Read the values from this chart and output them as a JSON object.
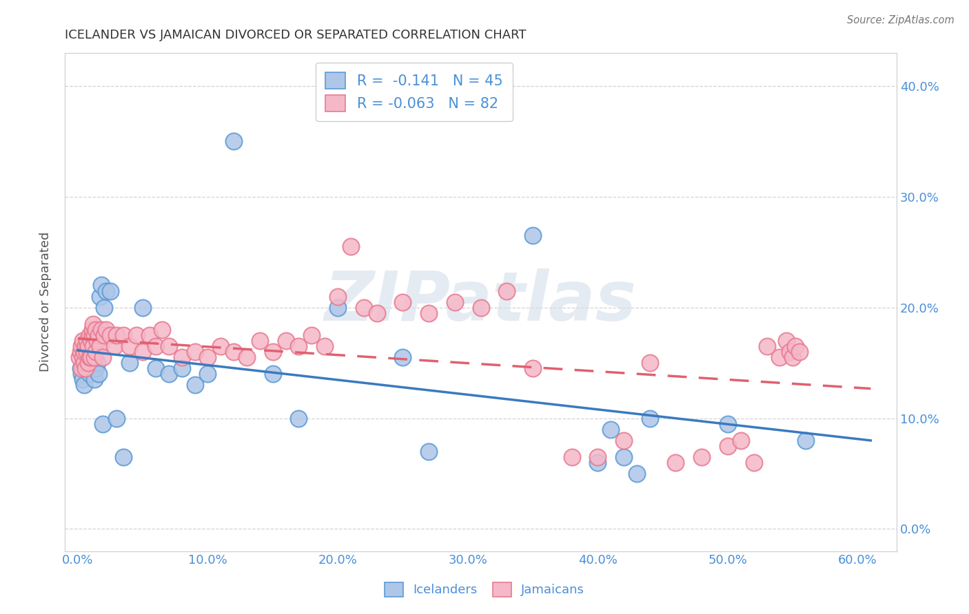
{
  "title": "ICELANDER VS JAMAICAN DIVORCED OR SEPARATED CORRELATION CHART",
  "source": "Source: ZipAtlas.com",
  "ylabel": "Divorced or Separated",
  "watermark": "ZIPatlas",
  "legend_icelander_R": "-0.141",
  "legend_icelander_N": "45",
  "legend_jamaican_R": "-0.063",
  "legend_jamaican_N": "82",
  "icelander_color": "#aec6e8",
  "jamaican_color": "#f5b8c8",
  "icelander_edge_color": "#5b9bd5",
  "jamaican_edge_color": "#e87a90",
  "icelander_line_color": "#3a7abf",
  "jamaican_line_color": "#e06070",
  "background_color": "#ffffff",
  "grid_color": "#c8c8c8",
  "title_color": "#333333",
  "axis_tick_color": "#4a90d9",
  "ylabel_color": "#555555",
  "ylim": [
    -0.02,
    0.43
  ],
  "xlim": [
    -0.01,
    0.63
  ],
  "ytick_vals": [
    0.0,
    0.1,
    0.2,
    0.3,
    0.4
  ],
  "xtick_vals": [
    0.0,
    0.1,
    0.2,
    0.3,
    0.4,
    0.5,
    0.6
  ],
  "icelander_x": [
    0.002,
    0.003,
    0.004,
    0.005,
    0.005,
    0.006,
    0.007,
    0.008,
    0.009,
    0.01,
    0.011,
    0.012,
    0.013,
    0.014,
    0.015,
    0.016,
    0.017,
    0.018,
    0.019,
    0.02,
    0.022,
    0.025,
    0.03,
    0.035,
    0.04,
    0.05,
    0.06,
    0.07,
    0.08,
    0.09,
    0.1,
    0.12,
    0.15,
    0.17,
    0.2,
    0.25,
    0.27,
    0.35,
    0.4,
    0.41,
    0.42,
    0.43,
    0.44,
    0.5,
    0.56
  ],
  "icelander_y": [
    0.145,
    0.14,
    0.135,
    0.155,
    0.13,
    0.15,
    0.145,
    0.16,
    0.14,
    0.15,
    0.16,
    0.155,
    0.135,
    0.145,
    0.15,
    0.14,
    0.21,
    0.22,
    0.095,
    0.2,
    0.215,
    0.215,
    0.1,
    0.065,
    0.15,
    0.2,
    0.145,
    0.14,
    0.145,
    0.13,
    0.14,
    0.35,
    0.14,
    0.1,
    0.2,
    0.155,
    0.07,
    0.265,
    0.06,
    0.09,
    0.065,
    0.05,
    0.1,
    0.095,
    0.08
  ],
  "jamaican_x": [
    0.001,
    0.002,
    0.003,
    0.003,
    0.004,
    0.004,
    0.005,
    0.005,
    0.006,
    0.006,
    0.007,
    0.007,
    0.008,
    0.008,
    0.009,
    0.009,
    0.01,
    0.01,
    0.011,
    0.011,
    0.012,
    0.012,
    0.013,
    0.013,
    0.014,
    0.014,
    0.015,
    0.016,
    0.017,
    0.018,
    0.019,
    0.02,
    0.022,
    0.025,
    0.028,
    0.03,
    0.035,
    0.04,
    0.045,
    0.05,
    0.055,
    0.06,
    0.065,
    0.07,
    0.08,
    0.09,
    0.1,
    0.11,
    0.12,
    0.13,
    0.14,
    0.15,
    0.16,
    0.17,
    0.18,
    0.19,
    0.2,
    0.21,
    0.22,
    0.23,
    0.25,
    0.27,
    0.29,
    0.31,
    0.33,
    0.35,
    0.38,
    0.4,
    0.42,
    0.44,
    0.46,
    0.48,
    0.5,
    0.51,
    0.52,
    0.53,
    0.54,
    0.545,
    0.548,
    0.55,
    0.552,
    0.555
  ],
  "jamaican_y": [
    0.155,
    0.16,
    0.145,
    0.165,
    0.155,
    0.17,
    0.15,
    0.16,
    0.145,
    0.165,
    0.16,
    0.17,
    0.15,
    0.165,
    0.155,
    0.175,
    0.155,
    0.17,
    0.175,
    0.18,
    0.165,
    0.185,
    0.155,
    0.175,
    0.16,
    0.18,
    0.17,
    0.175,
    0.165,
    0.18,
    0.155,
    0.175,
    0.18,
    0.175,
    0.165,
    0.175,
    0.175,
    0.165,
    0.175,
    0.16,
    0.175,
    0.165,
    0.18,
    0.165,
    0.155,
    0.16,
    0.155,
    0.165,
    0.16,
    0.155,
    0.17,
    0.16,
    0.17,
    0.165,
    0.175,
    0.165,
    0.21,
    0.255,
    0.2,
    0.195,
    0.205,
    0.195,
    0.205,
    0.2,
    0.215,
    0.145,
    0.065,
    0.065,
    0.08,
    0.15,
    0.06,
    0.065,
    0.075,
    0.08,
    0.06,
    0.165,
    0.155,
    0.17,
    0.16,
    0.155,
    0.165,
    0.16
  ]
}
